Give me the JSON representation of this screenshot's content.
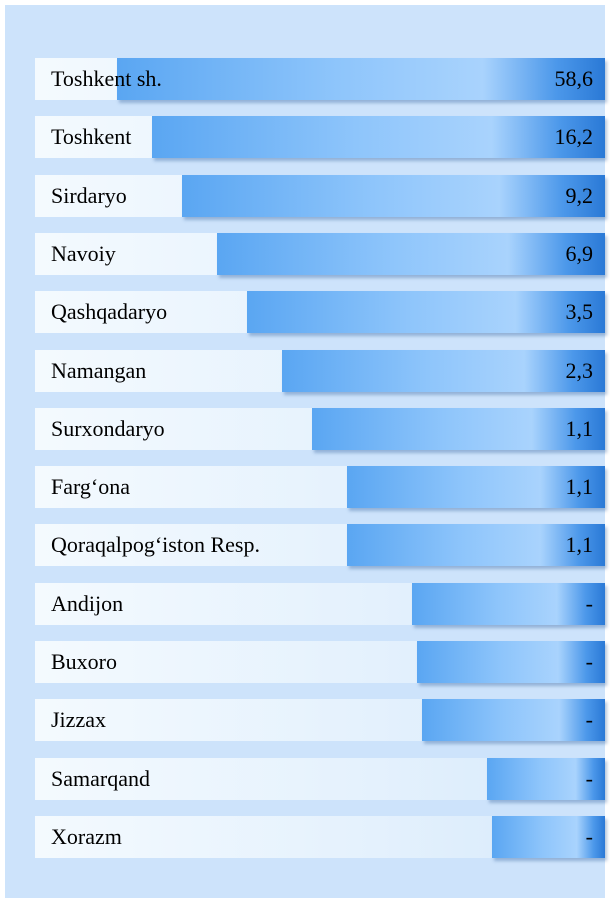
{
  "rows": [
    {
      "label": "Toshkent sh.",
      "value": "58,6"
    },
    {
      "label": "Toshkent",
      "value": "16,2"
    },
    {
      "label": "Sirdaryo",
      "value": "9,2"
    },
    {
      "label": "Navoiy",
      "value": "6,9"
    },
    {
      "label": "Qashqadaryo",
      "value": "3,5"
    },
    {
      "label": "Namangan",
      "value": "2,3"
    },
    {
      "label": "Surxondaryo",
      "value": "1,1"
    },
    {
      "label": "Farg‘ona",
      "value": "1,1"
    },
    {
      "label": "Qoraqalpog‘iston Resp.",
      "value": "1,1"
    },
    {
      "label": "Andijon",
      "value": "-"
    },
    {
      "label": "Buxoro",
      "value": "-"
    },
    {
      "label": "Jizzax",
      "value": "-"
    },
    {
      "label": "Samarqand",
      "value": "-"
    },
    {
      "label": "Xorazm",
      "value": "-"
    }
  ]
}
